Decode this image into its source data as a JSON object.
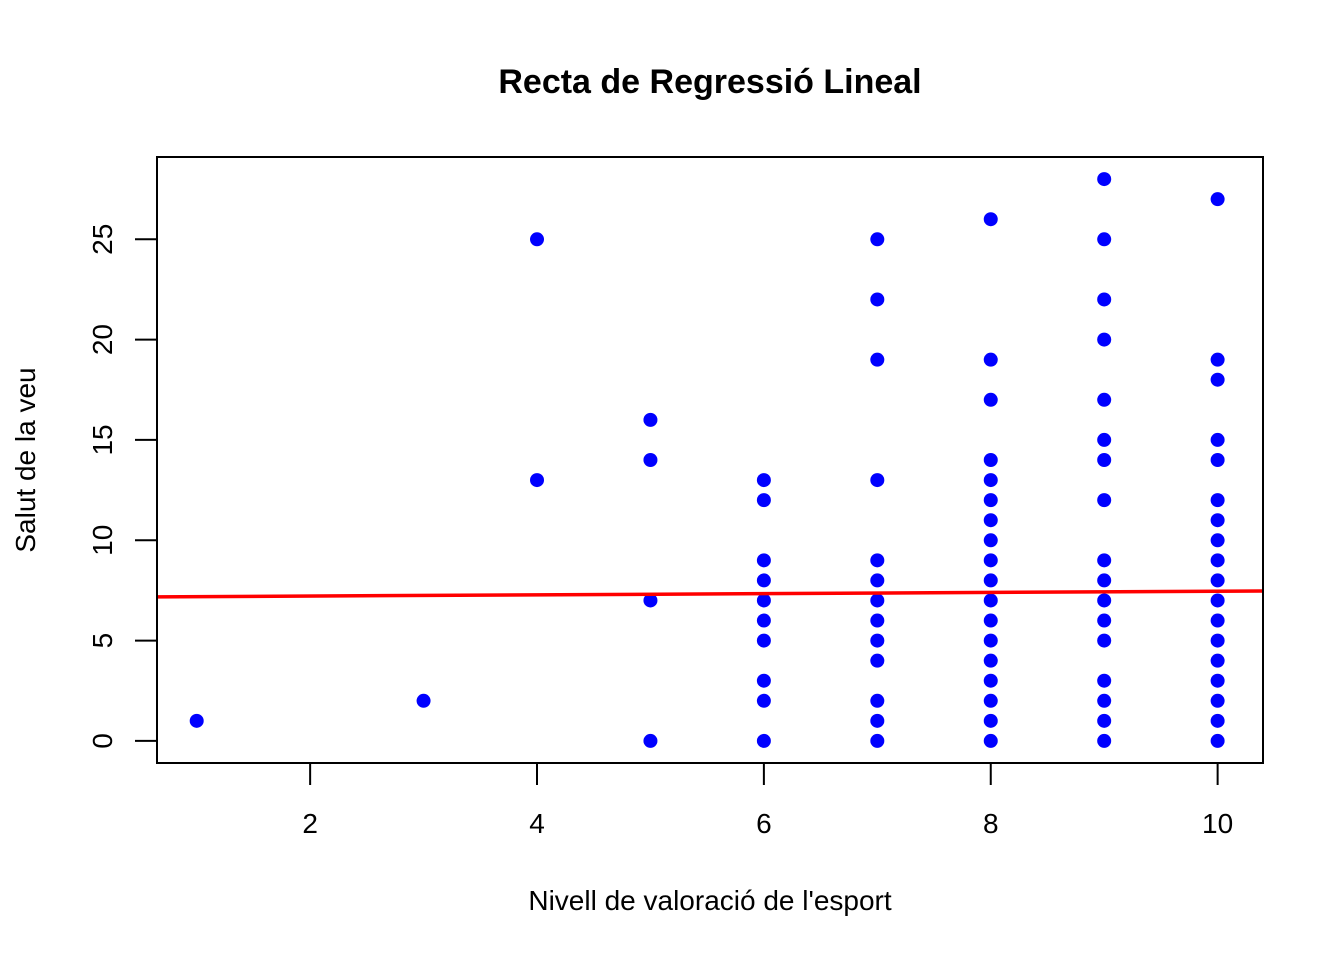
{
  "chart_data": {
    "type": "scatter",
    "title": "Recta de Regressió Lineal",
    "xlabel": "Nivell de valoració de l'esport",
    "ylabel": "Salut de la veu",
    "xlim": [
      0.65,
      10.4
    ],
    "ylim": [
      -1.1,
      29.1
    ],
    "xticks": [
      2,
      4,
      6,
      8,
      10
    ],
    "yticks": [
      0,
      5,
      10,
      15,
      20,
      25
    ],
    "grid": false,
    "point_color": "#0000ff",
    "line_color": "#ff0000",
    "points": [
      [
        1,
        1
      ],
      [
        3,
        2
      ],
      [
        4,
        13
      ],
      [
        4,
        25
      ],
      [
        5,
        0
      ],
      [
        5,
        7
      ],
      [
        5,
        14
      ],
      [
        5,
        16
      ],
      [
        6,
        0
      ],
      [
        6,
        2
      ],
      [
        6,
        3
      ],
      [
        6,
        5
      ],
      [
        6,
        6
      ],
      [
        6,
        7
      ],
      [
        6,
        8
      ],
      [
        6,
        9
      ],
      [
        6,
        12
      ],
      [
        6,
        13
      ],
      [
        7,
        0
      ],
      [
        7,
        1
      ],
      [
        7,
        2
      ],
      [
        7,
        4
      ],
      [
        7,
        5
      ],
      [
        7,
        6
      ],
      [
        7,
        7
      ],
      [
        7,
        8
      ],
      [
        7,
        9
      ],
      [
        7,
        13
      ],
      [
        7,
        19
      ],
      [
        7,
        22
      ],
      [
        7,
        25
      ],
      [
        8,
        0
      ],
      [
        8,
        1
      ],
      [
        8,
        2
      ],
      [
        8,
        3
      ],
      [
        8,
        4
      ],
      [
        8,
        5
      ],
      [
        8,
        6
      ],
      [
        8,
        7
      ],
      [
        8,
        8
      ],
      [
        8,
        9
      ],
      [
        8,
        10
      ],
      [
        8,
        11
      ],
      [
        8,
        12
      ],
      [
        8,
        13
      ],
      [
        8,
        14
      ],
      [
        8,
        17
      ],
      [
        8,
        19
      ],
      [
        8,
        26
      ],
      [
        9,
        0
      ],
      [
        9,
        1
      ],
      [
        9,
        2
      ],
      [
        9,
        3
      ],
      [
        9,
        5
      ],
      [
        9,
        6
      ],
      [
        9,
        7
      ],
      [
        9,
        8
      ],
      [
        9,
        9
      ],
      [
        9,
        12
      ],
      [
        9,
        14
      ],
      [
        9,
        15
      ],
      [
        9,
        17
      ],
      [
        9,
        20
      ],
      [
        9,
        22
      ],
      [
        9,
        25
      ],
      [
        9,
        28
      ],
      [
        10,
        0
      ],
      [
        10,
        1
      ],
      [
        10,
        2
      ],
      [
        10,
        3
      ],
      [
        10,
        4
      ],
      [
        10,
        5
      ],
      [
        10,
        6
      ],
      [
        10,
        7
      ],
      [
        10,
        8
      ],
      [
        10,
        9
      ],
      [
        10,
        10
      ],
      [
        10,
        11
      ],
      [
        10,
        12
      ],
      [
        10,
        14
      ],
      [
        10,
        15
      ],
      [
        10,
        18
      ],
      [
        10,
        19
      ],
      [
        10,
        27
      ]
    ],
    "regression_line": {
      "intercept": 7.16,
      "slope": 0.03
    }
  }
}
